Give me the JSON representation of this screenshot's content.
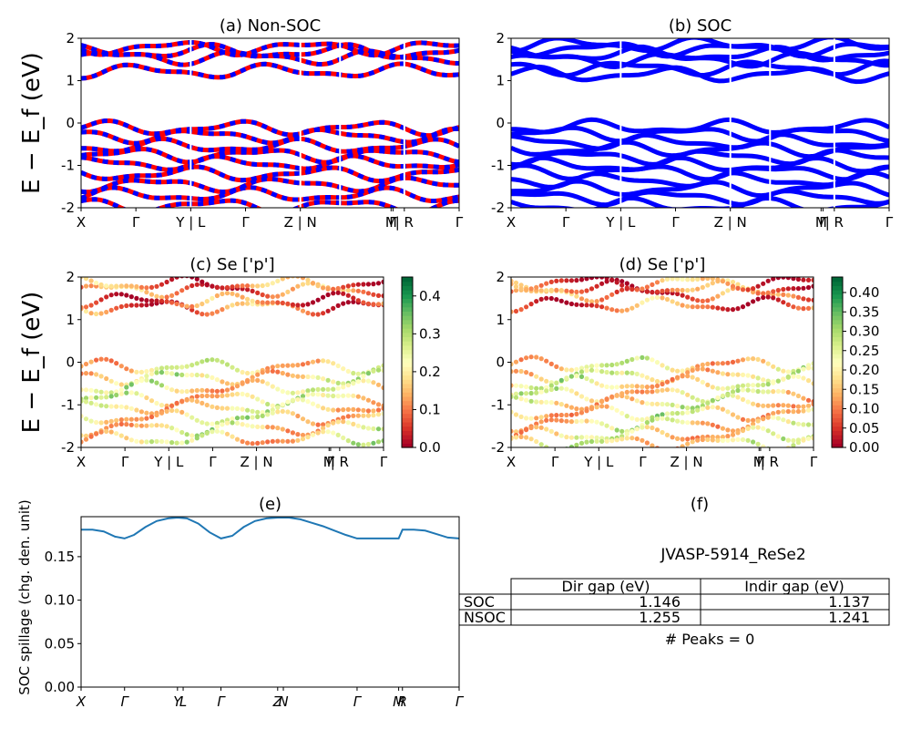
{
  "chart_data": [
    {
      "id": "a",
      "type": "line",
      "title": "(a) Non-SOC",
      "ylabel": "E − E_f (eV)",
      "ylim": [
        -2,
        2
      ],
      "yticks": [
        -2,
        -1,
        0,
        1,
        2
      ],
      "xlim": [
        0,
        2.0
      ],
      "ticks": [
        {
          "label": "X",
          "x": 0.0
        },
        {
          "label": "Γ",
          "x": 0.29
        },
        {
          "label": "Y | L",
          "x": 0.58
        },
        {
          "label": "Γ",
          "x": 0.87
        },
        {
          "label": "Z | N",
          "x": 1.16
        },
        {
          "label": "M",
          "x": 1.64
        },
        {
          "label": "Γ",
          "x": 1.65
        },
        {
          "label": "| R",
          "x": 1.71
        },
        {
          "label": "Γ",
          "x": 2.0
        }
      ],
      "breaks": [
        0.58,
        1.16,
        1.37,
        1.71
      ],
      "series": [
        {
          "color": "#ff0000",
          "style": "solid",
          "bands": [
            1.55,
            1.68,
            1.78,
            1.22,
            -0.12,
            -0.3,
            -0.55,
            -0.75,
            -0.95,
            -1.2,
            -1.45,
            -1.7,
            -1.95
          ]
        },
        {
          "color": "#0000ff",
          "style": "dashed",
          "bands": [
            1.55,
            1.68,
            1.78,
            1.22,
            -0.12,
            -0.3,
            -0.55,
            -0.75,
            -0.95,
            -1.2,
            -1.45,
            -1.7,
            -1.95
          ]
        }
      ]
    },
    {
      "id": "b",
      "type": "line",
      "title": "(b) SOC",
      "ylim": [
        -2,
        2
      ],
      "yticks": [
        -2,
        -1,
        0,
        1,
        2
      ],
      "xlim": [
        0,
        2.0
      ],
      "ticks": [
        {
          "label": "X",
          "x": 0.0
        },
        {
          "label": "Γ",
          "x": 0.29
        },
        {
          "label": "Y | L",
          "x": 0.58
        },
        {
          "label": "Γ",
          "x": 0.87
        },
        {
          "label": "Z | N",
          "x": 1.16
        },
        {
          "label": "M",
          "x": 1.64
        },
        {
          "label": "Γ",
          "x": 1.65
        },
        {
          "label": "| R",
          "x": 1.71
        },
        {
          "label": "Γ",
          "x": 2.0
        }
      ],
      "breaks": [
        0.58,
        1.16,
        1.37,
        1.71
      ],
      "series": [
        {
          "color": "#0000ff",
          "style": "solid",
          "bands": [
            1.5,
            1.62,
            1.75,
            1.85,
            1.15,
            1.3,
            -0.1,
            -0.25,
            -0.45,
            -0.62,
            -0.8,
            -1.0,
            -1.15,
            -1.35,
            -1.55,
            -1.75,
            -1.95
          ]
        }
      ]
    },
    {
      "id": "c",
      "type": "scatter",
      "title": "(c)  Se ['p']",
      "ylabel": "E − E_f (eV)",
      "ylim": [
        -2,
        2
      ],
      "yticks": [
        -2,
        -1,
        0,
        1,
        2
      ],
      "xlim": [
        0,
        2.0
      ],
      "ticks": [
        {
          "label": "X",
          "x": 0.0
        },
        {
          "label": "Γ",
          "x": 0.29
        },
        {
          "label": "Y | L",
          "x": 0.58
        },
        {
          "label": "Γ",
          "x": 0.87
        },
        {
          "label": "Z | N",
          "x": 1.16
        },
        {
          "label": "M",
          "x": 1.64
        },
        {
          "label": "Γ",
          "x": 1.65
        },
        {
          "label": "| R",
          "x": 1.71
        },
        {
          "label": "Γ",
          "x": 2.0
        }
      ],
      "colorbar": {
        "colormap": "RdYlGn",
        "min": 0.0,
        "max": 0.45,
        "ticks": [
          "0.0",
          "0.1",
          "0.2",
          "0.3",
          "0.4"
        ]
      },
      "bands": [
        1.7,
        1.85,
        1.3,
        1.45,
        -0.1,
        -0.35,
        -0.6,
        -0.85,
        -1.05,
        -1.3,
        -1.55,
        -1.8
      ]
    },
    {
      "id": "d",
      "type": "scatter",
      "title": "(d) Se ['p']",
      "ylim": [
        -2,
        2
      ],
      "yticks": [
        -2,
        -1,
        0,
        1,
        2
      ],
      "xlim": [
        0,
        2.0
      ],
      "ticks": [
        {
          "label": "X",
          "x": 0.0
        },
        {
          "label": "Γ",
          "x": 0.29
        },
        {
          "label": "Y | L",
          "x": 0.58
        },
        {
          "label": "Γ",
          "x": 0.87
        },
        {
          "label": "Z | N",
          "x": 1.16
        },
        {
          "label": "M",
          "x": 1.64
        },
        {
          "label": "Γ",
          "x": 1.65
        },
        {
          "label": "| R",
          "x": 1.71
        },
        {
          "label": "Γ",
          "x": 2.0
        }
      ],
      "colorbar": {
        "colormap": "RdYlGn",
        "min": 0.0,
        "max": 0.44,
        "ticks": [
          "0.00",
          "0.05",
          "0.10",
          "0.15",
          "0.20",
          "0.25",
          "0.30",
          "0.35",
          "0.40"
        ]
      },
      "bands": [
        1.6,
        1.75,
        1.88,
        1.35,
        -0.05,
        -0.3,
        -0.5,
        -0.75,
        -0.95,
        -1.2,
        -1.45,
        -1.7,
        -1.9
      ]
    },
    {
      "id": "e",
      "type": "line",
      "title": "(e)",
      "ylabel": "SOC spillage (chg. den. unit)",
      "ylim": [
        0.0,
        0.196
      ],
      "yticks": [
        "0.00",
        "0.05",
        "0.10",
        "0.15"
      ],
      "xlim": [
        0,
        2.0
      ],
      "ticks": [
        {
          "label": "X",
          "x": 0.0
        },
        {
          "label": "Γ",
          "x": 0.23
        },
        {
          "label": "Y",
          "x": 0.51
        },
        {
          "label": "L",
          "x": 0.54
        },
        {
          "label": "Γ",
          "x": 0.74
        },
        {
          "label": "Z",
          "x": 1.04
        },
        {
          "label": "N",
          "x": 1.07
        },
        {
          "label": "Γ",
          "x": 1.46
        },
        {
          "label": "M",
          "x": 1.68
        },
        {
          "label": "R",
          "x": 1.7
        },
        {
          "label": "Γ",
          "x": 2.0
        }
      ],
      "series": [
        {
          "color": "#1f77b4",
          "x": [
            0,
            0.06,
            0.12,
            0.18,
            0.23,
            0.28,
            0.34,
            0.4,
            0.46,
            0.51,
            0.56,
            0.62,
            0.68,
            0.74,
            0.8,
            0.86,
            0.92,
            0.98,
            1.04,
            1.1,
            1.16,
            1.22,
            1.28,
            1.34,
            1.4,
            1.46,
            1.52,
            1.58,
            1.64,
            1.68,
            1.7,
            1.76,
            1.82,
            1.88,
            1.94,
            2.0
          ],
          "y": [
            0.181,
            0.181,
            0.179,
            0.173,
            0.171,
            0.175,
            0.184,
            0.191,
            0.194,
            0.195,
            0.194,
            0.188,
            0.178,
            0.171,
            0.174,
            0.184,
            0.191,
            0.194,
            0.195,
            0.195,
            0.193,
            0.189,
            0.185,
            0.18,
            0.175,
            0.171,
            0.171,
            0.171,
            0.171,
            0.171,
            0.181,
            0.181,
            0.18,
            0.176,
            0.172,
            0.171
          ]
        }
      ]
    }
  ],
  "panel_f": {
    "title": "(f)",
    "material": "JVASP-5914_ReSe2",
    "table": {
      "columns": [
        "Dir gap (eV)",
        "Indir gap (eV)"
      ],
      "rows": [
        {
          "label": "SOC",
          "dir": "1.146",
          "indir": "1.137"
        },
        {
          "label": "NSOC",
          "dir": "1.255",
          "indir": "1.241"
        }
      ]
    },
    "peaks": "# Peaks = 0"
  }
}
